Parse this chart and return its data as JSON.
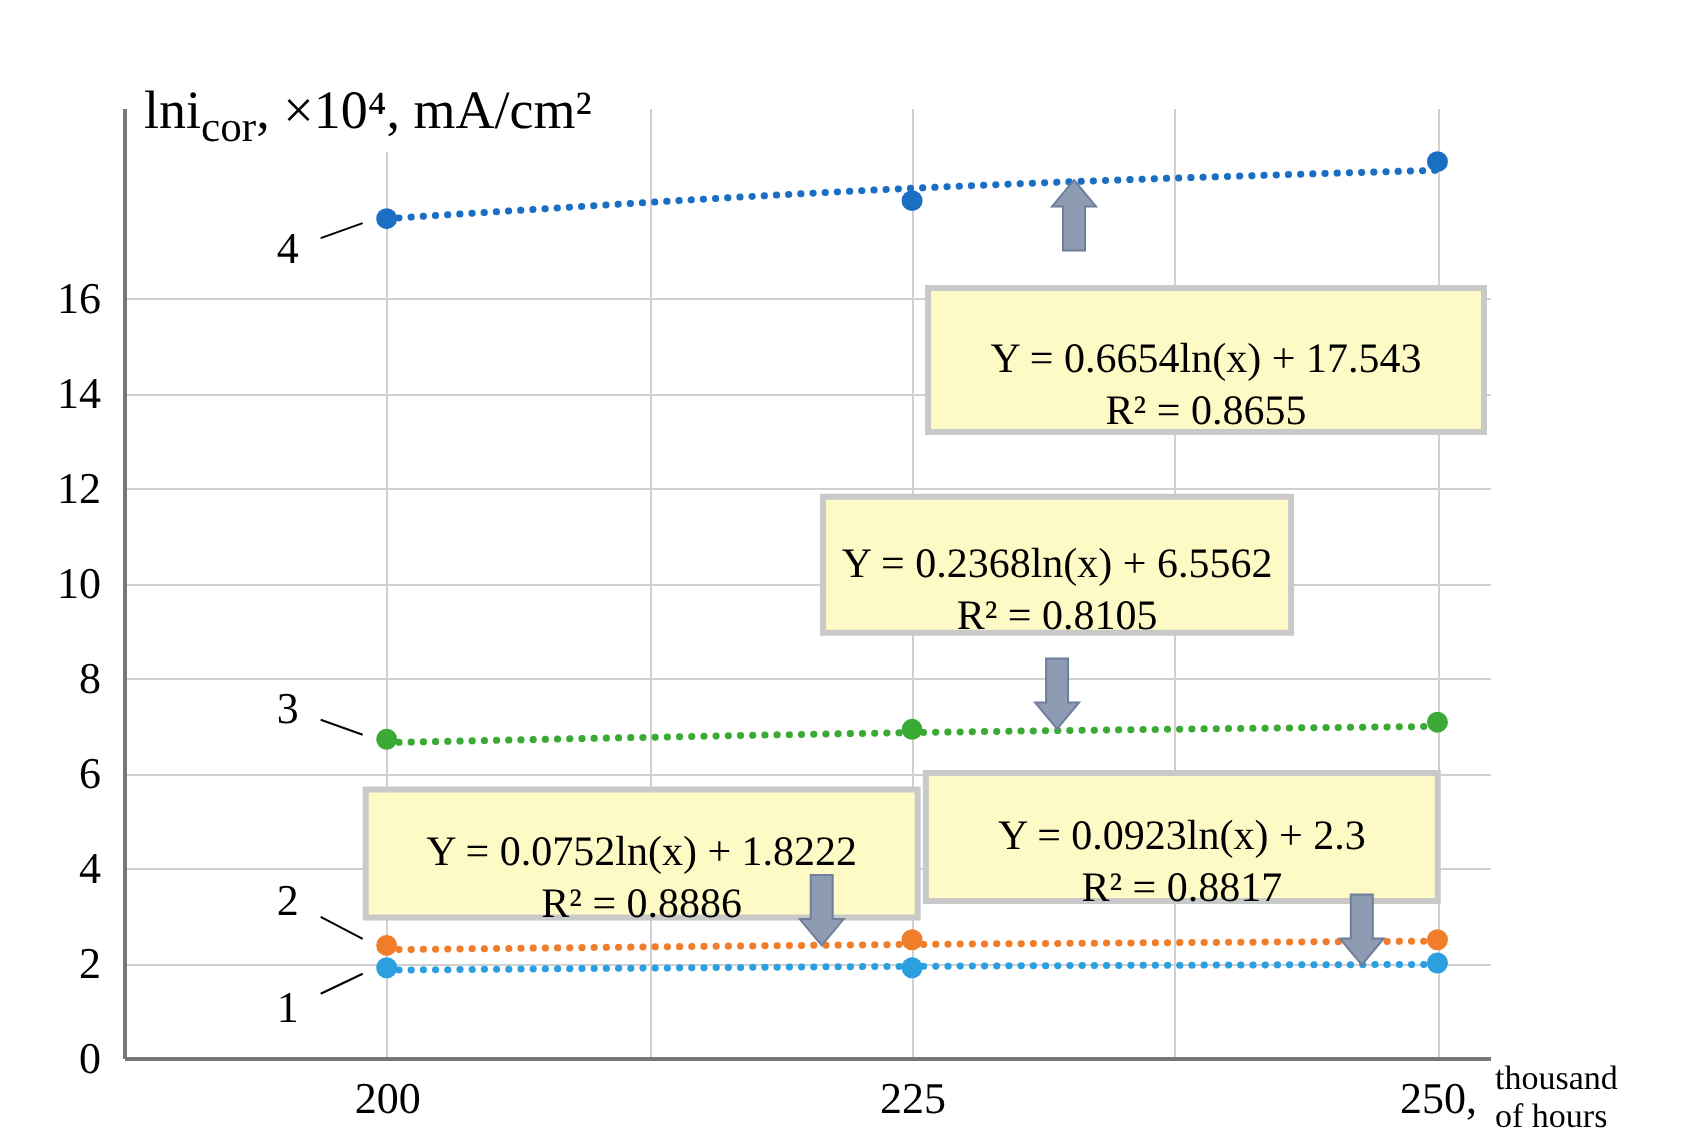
{
  "chart_data": {
    "type": "scatter",
    "ylabel": "lni$_{cor}$, ×10⁴, mA/cm²",
    "xlabel": "thousand of hours",
    "x": [
      200,
      225,
      250
    ],
    "xlim": [
      187.5,
      252.5
    ],
    "xticks": [
      200,
      {
        "value": 212.5,
        "label": null
      },
      225,
      {
        "value": 237.5,
        "label": null
      },
      {
        "value": 250,
        "label": "250,"
      }
    ],
    "ylim": [
      0,
      20
    ],
    "yticks": [
      0,
      2,
      4,
      6,
      8,
      10,
      12,
      14,
      16
    ],
    "grid": true,
    "marker": "circle",
    "series": [
      {
        "name": "1",
        "color": "#2b9fe0",
        "values": [
          1.9,
          1.9,
          2.0
        ]
      },
      {
        "name": "2",
        "color": "#f07d2a",
        "values": [
          2.37,
          2.49,
          2.49
        ]
      },
      {
        "name": "3",
        "color": "#3aaa35",
        "values": [
          6.71,
          6.92,
          7.07
        ]
      },
      {
        "name": "4",
        "color": "#1b6fc2",
        "values": [
          17.67,
          18.05,
          18.87
        ]
      },
      {
        "type": "line",
        "line_style": "dotted",
        "marker": "none",
        "color": "#2b9fe0",
        "x": [
          200,
          225,
          250
        ],
        "values": [
          1.85,
          1.93,
          1.97
        ]
      },
      {
        "type": "line",
        "line_style": "dotted",
        "marker": "none",
        "color": "#f07d2a",
        "x": [
          200,
          225,
          250
        ],
        "values": [
          2.28,
          2.39,
          2.46
        ]
      },
      {
        "type": "line",
        "line_style": "dotted",
        "marker": "none",
        "color": "#3aaa35",
        "x": [
          200,
          225,
          250
        ],
        "values": [
          6.64,
          6.85,
          6.98
        ]
      },
      {
        "type": "line",
        "line_style": "dotted",
        "marker": "none",
        "color": "#1b6fc2",
        "x": [
          200,
          225,
          250
        ],
        "values": [
          17.67,
          18.31,
          18.69
        ]
      }
    ],
    "annotations": [
      {
        "text": "Y = 0.0752ln(x) + 1.8222\nR² = 0.8886",
        "x": 220.7,
        "y": 2.37
      },
      {
        "text": "Y = 0.0923ln(x) + 2.3\nR² = 0.8817",
        "x": 246.4,
        "y": 1.96
      },
      {
        "text": "Y = 0.2368ln(x) + 6.5562\nR² = 0.8105",
        "x": 231.9,
        "y": 6.93
      },
      "Y = 0.6654ln(x) + 17.543\nR² = 0.8655"
    ]
  }
}
